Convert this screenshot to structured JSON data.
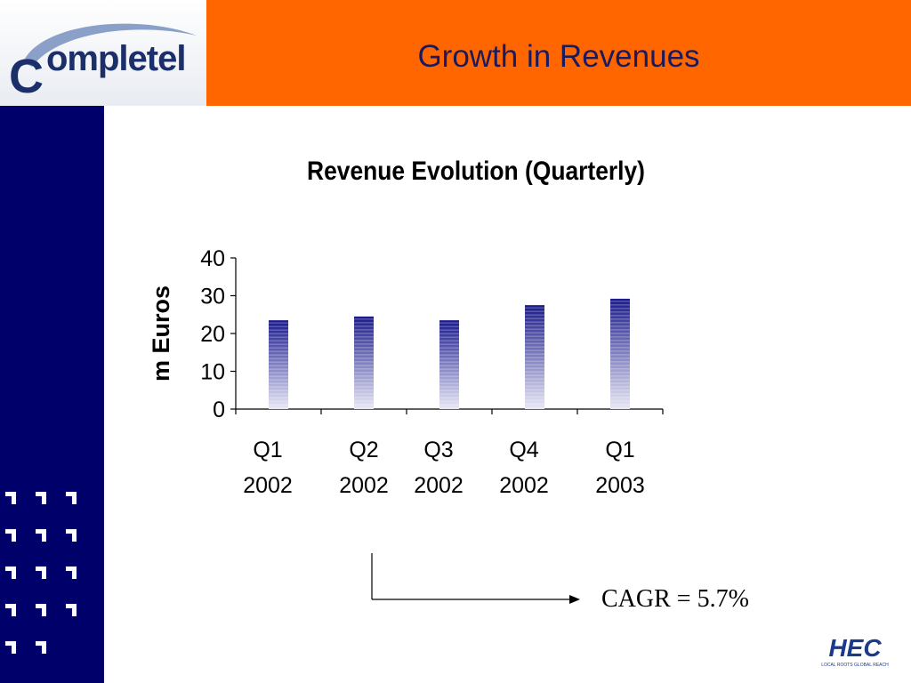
{
  "header": {
    "logo_text": "ompletel",
    "logo_initial": "C",
    "title": "Growth in Revenues",
    "colors": {
      "bar": "#ff6600",
      "sidebar": "#00006b",
      "logo": "#1b2f6b"
    }
  },
  "footer": {
    "cagr_text": "CAGR = 5.7%",
    "hec_logo": "HEC",
    "hec_tagline": "LOCAL ROOTS GLOBAL REACH"
  },
  "chart_data": {
    "type": "bar",
    "title": "Revenue Evolution (Quarterly)",
    "ylabel": "m Euros",
    "xlabel": "",
    "categories": [
      [
        "Q1",
        "2002"
      ],
      [
        "Q2",
        "2002"
      ],
      [
        "Q3",
        "2002"
      ],
      [
        "Q4",
        "2002"
      ],
      [
        "Q1",
        "2003"
      ]
    ],
    "values": [
      23.5,
      24.5,
      23.5,
      27.5,
      29.2
    ],
    "ylim": [
      0,
      40
    ],
    "yticks": [
      0,
      10,
      20,
      30,
      40
    ],
    "grid": false,
    "bar_color_top": "#1a1a8c",
    "bar_color_bottom": "#e8e8f6"
  }
}
